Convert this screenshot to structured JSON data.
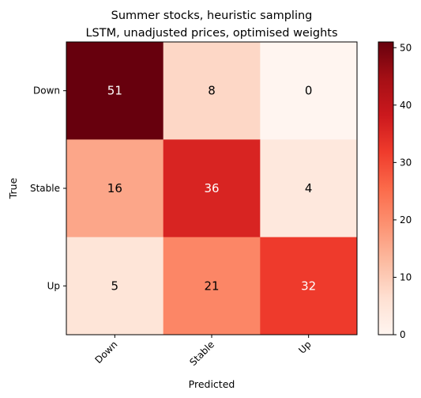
{
  "chart_data": {
    "type": "heatmap",
    "title_line1": "Summer stocks, heuristic sampling",
    "title_line2": "LSTM, unadjusted prices, optimised weights",
    "xlabel": "Predicted",
    "ylabel": "True",
    "x_categories": [
      "Down",
      "Stable",
      "Up"
    ],
    "y_categories": [
      "Down",
      "Stable",
      "Up"
    ],
    "matrix": [
      [
        51,
        8,
        0
      ],
      [
        16,
        36,
        4
      ],
      [
        5,
        21,
        32
      ]
    ],
    "colormap": "Reds",
    "colorbar": {
      "min": 0,
      "max": 51,
      "ticks": [
        0,
        10,
        20,
        30,
        40,
        50
      ],
      "tick_labels": [
        "0",
        "10",
        "20",
        "30",
        "40",
        "50"
      ]
    }
  }
}
